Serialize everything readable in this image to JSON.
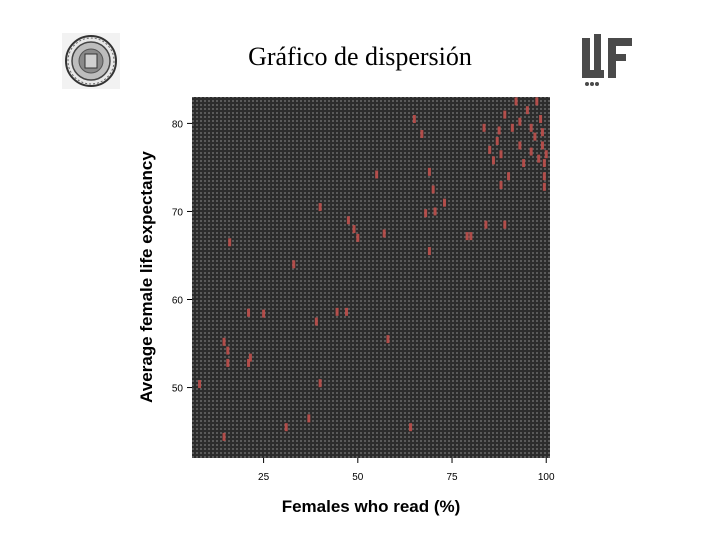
{
  "slide": {
    "title": "Gráfico de dispersión"
  },
  "colors": {
    "plot_background": "#2c2c2c",
    "point": "#c0504d",
    "hatch": "#5a5a5a"
  },
  "icons": {
    "left_logo": "university-seal-icon",
    "right_logo": "ulf-logo-icon"
  },
  "chart_data": {
    "type": "scatter",
    "xlabel": "Females who read (%)",
    "ylabel": "Average female life expectancy",
    "xlim": [
      6,
      101
    ],
    "ylim": [
      42,
      83
    ],
    "xticks": [
      25,
      50,
      75,
      100
    ],
    "yticks": [
      50,
      60,
      70,
      80
    ],
    "grid": false,
    "points": [
      {
        "x": 8,
        "y": 50.4
      },
      {
        "x": 16,
        "y": 66.5
      },
      {
        "x": 14.5,
        "y": 55.2
      },
      {
        "x": 15.5,
        "y": 54.2
      },
      {
        "x": 15.5,
        "y": 52.8
      },
      {
        "x": 14.5,
        "y": 44.4
      },
      {
        "x": 21,
        "y": 58.5
      },
      {
        "x": 25,
        "y": 58.4
      },
      {
        "x": 21.5,
        "y": 53.4
      },
      {
        "x": 21,
        "y": 52.8
      },
      {
        "x": 31,
        "y": 45.5
      },
      {
        "x": 37,
        "y": 46.5
      },
      {
        "x": 39,
        "y": 57.5
      },
      {
        "x": 40,
        "y": 50.5
      },
      {
        "x": 33,
        "y": 64
      },
      {
        "x": 44.5,
        "y": 58.6
      },
      {
        "x": 47,
        "y": 58.6
      },
      {
        "x": 47.5,
        "y": 69
      },
      {
        "x": 49,
        "y": 68
      },
      {
        "x": 50,
        "y": 67
      },
      {
        "x": 40,
        "y": 70.5
      },
      {
        "x": 55,
        "y": 74.2
      },
      {
        "x": 57,
        "y": 67.5
      },
      {
        "x": 58,
        "y": 55.5
      },
      {
        "x": 64,
        "y": 45.5
      },
      {
        "x": 65,
        "y": 80.5
      },
      {
        "x": 67,
        "y": 78.8
      },
      {
        "x": 69,
        "y": 74.5
      },
      {
        "x": 70,
        "y": 72.5
      },
      {
        "x": 70.5,
        "y": 70
      },
      {
        "x": 69,
        "y": 65.5
      },
      {
        "x": 68,
        "y": 69.8
      },
      {
        "x": 73,
        "y": 71
      },
      {
        "x": 79,
        "y": 67.2
      },
      {
        "x": 80,
        "y": 67.2
      },
      {
        "x": 84,
        "y": 68.5
      },
      {
        "x": 83.5,
        "y": 79.5
      },
      {
        "x": 85,
        "y": 77
      },
      {
        "x": 86,
        "y": 75.8
      },
      {
        "x": 87,
        "y": 78
      },
      {
        "x": 88,
        "y": 76.5
      },
      {
        "x": 89,
        "y": 81
      },
      {
        "x": 88,
        "y": 73
      },
      {
        "x": 90,
        "y": 74
      },
      {
        "x": 89,
        "y": 68.5
      },
      {
        "x": 91,
        "y": 79.5
      },
      {
        "x": 92,
        "y": 82.5
      },
      {
        "x": 93,
        "y": 80.2
      },
      {
        "x": 93,
        "y": 77.5
      },
      {
        "x": 94,
        "y": 75.5
      },
      {
        "x": 95,
        "y": 81.5
      },
      {
        "x": 96,
        "y": 79.5
      },
      {
        "x": 96,
        "y": 76.8
      },
      {
        "x": 97,
        "y": 78.5
      },
      {
        "x": 97.5,
        "y": 82.5
      },
      {
        "x": 98,
        "y": 76
      },
      {
        "x": 99,
        "y": 79
      },
      {
        "x": 99,
        "y": 77.5
      },
      {
        "x": 99.5,
        "y": 75.5
      },
      {
        "x": 99.5,
        "y": 74
      },
      {
        "x": 99.5,
        "y": 72.8
      },
      {
        "x": 100,
        "y": 76.5
      },
      {
        "x": 98.5,
        "y": 80.5
      },
      {
        "x": 87.5,
        "y": 79.2
      }
    ]
  }
}
